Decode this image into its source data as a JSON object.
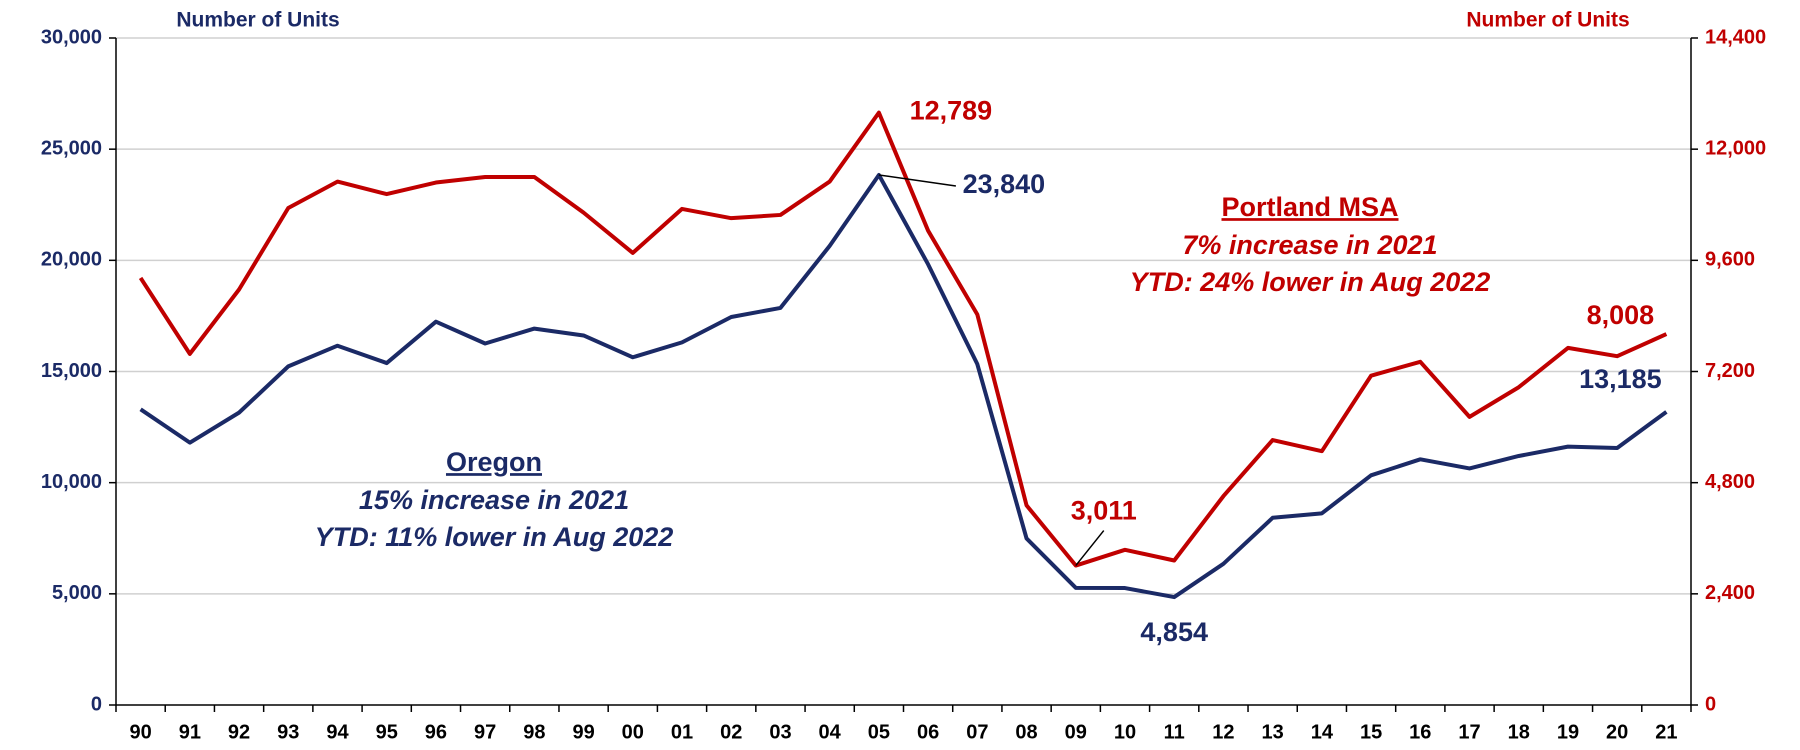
{
  "chart_data": {
    "type": "line",
    "y_label": "Number of Units",
    "y2_label": "Number of Units",
    "categories": [
      "90",
      "91",
      "92",
      "93",
      "94",
      "95",
      "96",
      "97",
      "98",
      "99",
      "00",
      "01",
      "02",
      "03",
      "04",
      "05",
      "06",
      "07",
      "08",
      "09",
      "10",
      "11",
      "12",
      "13",
      "14",
      "15",
      "16",
      "17",
      "18",
      "19",
      "20",
      "21"
    ],
    "series": [
      {
        "name": "Oregon",
        "color": "#1b2a66",
        "axis": "y",
        "values": [
          13300,
          11800,
          13150,
          15230,
          16160,
          15380,
          17240,
          16260,
          16930,
          16620,
          15640,
          16310,
          17450,
          17860,
          20650,
          23840,
          19820,
          15330,
          7490,
          5270,
          5260,
          4854,
          6350,
          8420,
          8620,
          10330,
          11050,
          10640,
          11200,
          11620,
          11560,
          13185
        ],
        "value_labels": [
          null,
          null,
          null,
          null,
          null,
          null,
          null,
          null,
          null,
          null,
          null,
          null,
          null,
          null,
          null,
          "23,840",
          null,
          null,
          null,
          null,
          null,
          "4,854",
          null,
          null,
          null,
          null,
          null,
          null,
          null,
          null,
          null,
          "13,185"
        ]
      },
      {
        "name": "Portland MSA",
        "color": "#c00000",
        "axis": "y2",
        "values": [
          9220,
          7580,
          8970,
          10730,
          11300,
          11030,
          11280,
          11400,
          11400,
          10630,
          9760,
          10710,
          10510,
          10580,
          11300,
          12789,
          10240,
          8430,
          4310,
          3011,
          3350,
          3120,
          4510,
          5720,
          5480,
          7110,
          7410,
          6220,
          6860,
          7710,
          7530,
          8008
        ],
        "value_labels": [
          null,
          null,
          null,
          null,
          null,
          null,
          null,
          null,
          null,
          null,
          null,
          null,
          null,
          null,
          null,
          "12,789",
          null,
          null,
          null,
          "3,011",
          null,
          null,
          null,
          null,
          null,
          null,
          null,
          null,
          null,
          null,
          null,
          "8,008"
        ]
      }
    ],
    "ylim": [
      0,
      30000
    ],
    "yticks": [
      0,
      {
        "value": 5000,
        "label": "5,000"
      },
      {
        "value": 10000,
        "label": "10,000"
      },
      {
        "value": 15000,
        "label": "15,000"
      },
      {
        "value": 20000,
        "label": "20,000"
      },
      {
        "value": 25000,
        "label": "25,000"
      },
      {
        "value": 30000,
        "label": "30,000"
      }
    ],
    "y2lim": [
      0,
      14400
    ],
    "y2ticks": [
      0,
      {
        "value": 2400,
        "label": "2,400"
      },
      {
        "value": 4800,
        "label": "4,800"
      },
      {
        "value": 7200,
        "label": "7,200"
      },
      {
        "value": 9600,
        "label": "9,600"
      },
      {
        "value": 12000,
        "label": "12,000"
      },
      {
        "value": 14400,
        "label": "14,400"
      }
    ],
    "grid": true,
    "annotations": [
      {
        "title": "Oregon",
        "lines": [
          "15% increase in 2021",
          "YTD: 11% lower in Aug 2022"
        ]
      },
      {
        "title": "Portland MSA",
        "lines": [
          "7% increase in 2021",
          "YTD: 24% lower in Aug 2022"
        ]
      }
    ]
  }
}
